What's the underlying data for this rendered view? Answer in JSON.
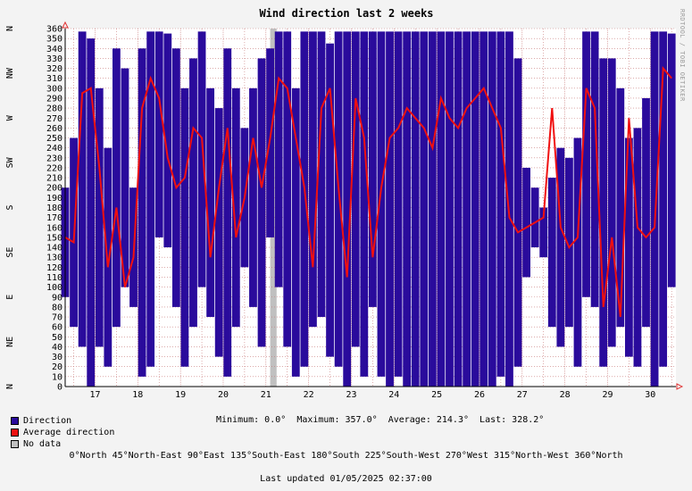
{
  "chart_data": {
    "type": "line",
    "title": "Wind direction last 2 weeks",
    "ylim": [
      0,
      360
    ],
    "y_ticks": [
      0,
      10,
      20,
      30,
      40,
      50,
      60,
      70,
      80,
      90,
      100,
      110,
      120,
      130,
      140,
      150,
      160,
      170,
      180,
      190,
      200,
      210,
      220,
      230,
      240,
      250,
      260,
      270,
      280,
      290,
      300,
      310,
      320,
      330,
      340,
      350,
      360
    ],
    "compass_ticks": [
      {
        "label": "N",
        "value": 0
      },
      {
        "label": "NE",
        "value": 45
      },
      {
        "label": "E",
        "value": 90
      },
      {
        "label": "SE",
        "value": 135
      },
      {
        "label": "S",
        "value": 180
      },
      {
        "label": "SW",
        "value": 225
      },
      {
        "label": "W",
        "value": 270
      },
      {
        "label": "NW",
        "value": 315
      },
      {
        "label": "N",
        "value": 360
      }
    ],
    "xlim": [
      16.3,
      30.6
    ],
    "x_ticks": [
      17,
      18,
      19,
      20,
      21,
      22,
      23,
      24,
      25,
      26,
      27,
      28,
      29,
      30
    ],
    "grid": true,
    "series": [
      {
        "name": "Direction",
        "color": "#2a0b9c",
        "style": "band",
        "x": [
          16.3,
          16.5,
          16.7,
          16.9,
          17.1,
          17.3,
          17.5,
          17.7,
          17.9,
          18.1,
          18.3,
          18.5,
          18.7,
          18.9,
          19.1,
          19.3,
          19.5,
          19.7,
          19.9,
          20.1,
          20.3,
          20.5,
          20.7,
          20.9,
          21.1,
          21.3,
          21.5,
          21.7,
          21.9,
          22.1,
          22.3,
          22.5,
          22.7,
          22.9,
          23.1,
          23.3,
          23.5,
          23.7,
          23.9,
          24.1,
          24.3,
          24.5,
          24.7,
          24.9,
          25.1,
          25.3,
          25.5,
          25.7,
          25.9,
          26.1,
          26.3,
          26.5,
          26.7,
          26.9,
          27.1,
          27.3,
          27.5,
          27.7,
          27.9,
          28.1,
          28.3,
          28.5,
          28.7,
          28.9,
          29.1,
          29.3,
          29.5,
          29.7,
          29.9,
          30.1,
          30.3,
          30.5
        ],
        "low": [
          90,
          60,
          40,
          0,
          40,
          20,
          60,
          100,
          80,
          10,
          20,
          150,
          140,
          80,
          20,
          60,
          100,
          70,
          30,
          10,
          60,
          120,
          80,
          40,
          150,
          100,
          40,
          10,
          20,
          60,
          70,
          30,
          20,
          0,
          40,
          10,
          80,
          10,
          0,
          10,
          0,
          0,
          0,
          0,
          0,
          0,
          0,
          0,
          0,
          0,
          0,
          10,
          0,
          20,
          110,
          140,
          130,
          60,
          40,
          60,
          20,
          90,
          80,
          20,
          40,
          60,
          30,
          20,
          60,
          0,
          20,
          100
        ],
        "high": [
          200,
          250,
          357,
          350,
          300,
          240,
          340,
          320,
          200,
          340,
          357,
          357,
          355,
          340,
          300,
          330,
          357,
          300,
          280,
          340,
          300,
          260,
          300,
          330,
          340,
          357,
          357,
          300,
          357,
          357,
          357,
          345,
          357,
          357,
          357,
          357,
          357,
          357,
          357,
          357,
          357,
          357,
          357,
          357,
          357,
          357,
          357,
          357,
          357,
          357,
          357,
          357,
          357,
          330,
          220,
          200,
          180,
          210,
          240,
          230,
          250,
          357,
          357,
          330,
          330,
          300,
          250,
          260,
          290,
          357,
          357,
          355
        ]
      },
      {
        "name": "Average direction",
        "color": "#f01010",
        "style": "line",
        "x": [
          16.3,
          16.5,
          16.7,
          16.9,
          17.1,
          17.3,
          17.5,
          17.7,
          17.9,
          18.1,
          18.3,
          18.5,
          18.7,
          18.9,
          19.1,
          19.3,
          19.5,
          19.7,
          19.9,
          20.1,
          20.3,
          20.5,
          20.7,
          20.9,
          21.1,
          21.3,
          21.5,
          21.7,
          21.9,
          22.1,
          22.3,
          22.5,
          22.7,
          22.9,
          23.1,
          23.3,
          23.5,
          23.7,
          23.9,
          24.1,
          24.3,
          24.5,
          24.7,
          24.9,
          25.1,
          25.3,
          25.5,
          25.7,
          25.9,
          26.1,
          26.3,
          26.5,
          26.7,
          26.9,
          27.1,
          27.3,
          27.5,
          27.7,
          27.9,
          28.1,
          28.3,
          28.5,
          28.7,
          28.9,
          29.1,
          29.3,
          29.5,
          29.7,
          29.9,
          30.1,
          30.3,
          30.5
        ],
        "y": [
          150,
          145,
          295,
          300,
          220,
          120,
          180,
          100,
          130,
          280,
          310,
          290,
          230,
          200,
          210,
          260,
          250,
          130,
          200,
          260,
          150,
          190,
          250,
          200,
          250,
          310,
          300,
          250,
          200,
          120,
          280,
          300,
          200,
          110,
          290,
          250,
          130,
          200,
          250,
          260,
          280,
          270,
          260,
          240,
          290,
          270,
          260,
          280,
          290,
          300,
          280,
          260,
          170,
          155,
          160,
          165,
          170,
          280,
          160,
          140,
          150,
          300,
          280,
          80,
          150,
          70,
          270,
          160,
          150,
          160,
          320,
          310
        ]
      }
    ],
    "gap": {
      "name": "No data",
      "color": "#c0c0c0",
      "x": [
        21.1,
        21.25
      ]
    },
    "legend": [
      "Direction",
      "Average direction",
      "No data"
    ]
  },
  "stats": {
    "minimum": "Minimum: 0.0°",
    "maximum": "Maximum: 357.0°",
    "average": "Average: 214.3°",
    "last": "Last: 328.2°"
  },
  "compass_legend": "0°North 45°North-East 90°East 135°South-East 180°South 225°South-West 270°West 315°North-West 360°North",
  "updated": "Last updated 01/05/2025 02:37:00",
  "watermark": "RRDTOOL / TOBI OETIKER"
}
